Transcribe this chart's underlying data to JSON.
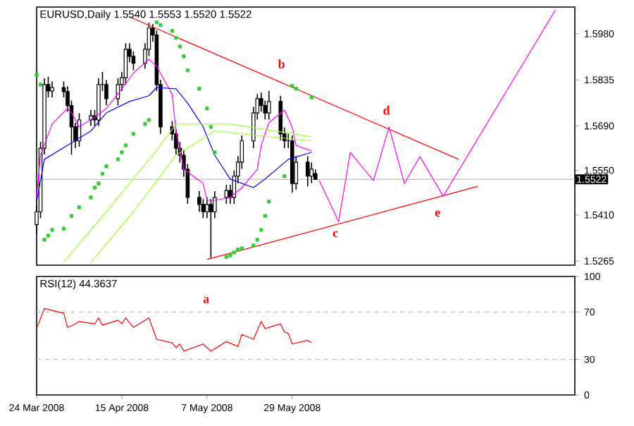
{
  "chart_data": [
    {
      "type": "candlestick",
      "title": "EURUSD,Daily  1.5540 1.5553 1.5520 1.5522",
      "x": [
        "2008-03-24",
        "2008-03-25",
        "2008-03-26",
        "2008-03-27",
        "2008-03-28",
        "2008-03-31",
        "2008-04-01",
        "2008-04-02",
        "2008-04-03",
        "2008-04-04",
        "2008-04-07",
        "2008-04-08",
        "2008-04-09",
        "2008-04-10",
        "2008-04-11",
        "2008-04-14",
        "2008-04-15",
        "2008-04-16",
        "2008-04-17",
        "2008-04-18",
        "2008-04-21",
        "2008-04-22",
        "2008-04-23",
        "2008-04-24",
        "2008-04-25",
        "2008-04-28",
        "2008-04-29",
        "2008-04-30",
        "2008-05-01",
        "2008-05-02",
        "2008-05-05",
        "2008-05-06",
        "2008-05-07",
        "2008-05-08",
        "2008-05-09",
        "2008-05-12",
        "2008-05-13",
        "2008-05-14",
        "2008-05-15",
        "2008-05-16",
        "2008-05-19",
        "2008-05-20",
        "2008-05-21",
        "2008-05-22",
        "2008-05-23",
        "2008-05-26",
        "2008-05-27",
        "2008-05-28",
        "2008-05-29",
        "2008-05-30",
        "2008-06-02",
        "2008-06-03",
        "2008-06-04"
      ],
      "ohlc": [
        [
          1.538,
          1.544,
          1.535,
          1.542
        ],
        [
          1.542,
          1.564,
          1.54,
          1.562
        ],
        [
          1.562,
          1.584,
          1.56,
          1.582
        ],
        [
          1.582,
          1.5845,
          1.578,
          1.58
        ],
        [
          1.58,
          1.583,
          1.578,
          1.5811
        ],
        [
          1.5811,
          1.583,
          1.578,
          1.5798
        ],
        [
          1.5798,
          1.5815,
          1.5735,
          1.5754
        ],
        [
          1.5754,
          1.577,
          1.56,
          1.5687
        ],
        [
          1.5687,
          1.57,
          1.562,
          1.5643
        ],
        [
          1.5643,
          1.573,
          1.5625,
          1.5709
        ],
        [
          1.5709,
          1.574,
          1.569,
          1.5722
        ],
        [
          1.5722,
          1.574,
          1.569,
          1.5709
        ],
        [
          1.5709,
          1.584,
          1.569,
          1.582
        ],
        [
          1.582,
          1.586,
          1.58,
          1.582
        ],
        [
          1.582,
          1.5835,
          1.5755,
          1.5776
        ],
        [
          1.5776,
          1.584,
          1.5755,
          1.582
        ],
        [
          1.582,
          1.586,
          1.58,
          1.5842
        ],
        [
          1.5842,
          1.595,
          1.582,
          1.5931
        ],
        [
          1.5931,
          1.595,
          1.589,
          1.5909
        ],
        [
          1.5909,
          1.5925,
          1.5865,
          1.5887
        ],
        [
          1.5887,
          1.595,
          1.587,
          1.5931
        ],
        [
          1.5931,
          1.6015,
          1.591,
          1.5998
        ],
        [
          1.5998,
          1.601,
          1.5955,
          1.5976
        ],
        [
          1.5976,
          1.599,
          1.58,
          1.582
        ],
        [
          1.582,
          1.5835,
          1.5665,
          1.5687
        ],
        [
          1.5687,
          1.5705,
          1.5645,
          1.5665
        ],
        [
          1.5665,
          1.568,
          1.56,
          1.562
        ],
        [
          1.562,
          1.564,
          1.5575,
          1.5598
        ],
        [
          1.5598,
          1.5615,
          1.553,
          1.5554
        ],
        [
          1.5554,
          1.557,
          1.5445,
          1.5465
        ],
        [
          1.5465,
          1.5485,
          1.542,
          1.5443
        ],
        [
          1.5443,
          1.546,
          1.54,
          1.542
        ],
        [
          1.542,
          1.5465,
          1.54,
          1.5443
        ],
        [
          1.5443,
          1.546,
          1.5275,
          1.542
        ],
        [
          1.542,
          1.5485,
          1.54,
          1.5465
        ],
        [
          1.5465,
          1.5505,
          1.5445,
          1.5487
        ],
        [
          1.5487,
          1.5505,
          1.5445,
          1.5465
        ],
        [
          1.5465,
          1.555,
          1.5445,
          1.5532
        ],
        [
          1.5532,
          1.5595,
          1.551,
          1.5576
        ],
        [
          1.5576,
          1.566,
          1.5555,
          1.5643
        ],
        [
          1.5643,
          1.575,
          1.562,
          1.5731
        ],
        [
          1.5731,
          1.579,
          1.571,
          1.5776
        ],
        [
          1.5776,
          1.5795,
          1.5735,
          1.5754
        ],
        [
          1.5754,
          1.577,
          1.571,
          1.5731
        ],
        [
          1.5731,
          1.58,
          1.571,
          1.5767
        ],
        [
          1.5767,
          1.5785,
          1.5645,
          1.5665
        ],
        [
          1.5665,
          1.5685,
          1.562,
          1.5643
        ],
        [
          1.5643,
          1.5665,
          1.562,
          1.5643
        ],
        [
          1.5643,
          1.566,
          1.548,
          1.5509
        ],
        [
          1.5509,
          1.5595,
          1.549,
          1.5576
        ],
        [
          1.5576,
          1.5595,
          1.55,
          1.5532
        ],
        [
          1.5532,
          1.5575,
          1.551,
          1.5554
        ],
        [
          1.554,
          1.5553,
          1.552,
          1.5522
        ]
      ],
      "series": [
        {
          "type": "line",
          "color": "#ff00ff",
          "x": [
            "2008-03-24",
            "2008-03-25",
            "2008-03-28",
            "2008-04-01",
            "2008-04-02",
            "2008-04-04",
            "2008-04-08",
            "2008-04-11",
            "2008-04-15",
            "2008-04-18",
            "2008-04-22",
            "2008-04-24",
            "2008-04-28",
            "2008-04-29",
            "2008-05-01",
            "2008-05-06",
            "2008-05-07",
            "2008-05-09",
            "2008-05-13",
            "2008-05-16",
            "2008-05-20",
            "2008-05-21",
            "2008-05-23",
            "2008-05-27",
            "2008-05-29",
            "2008-05-30",
            "2008-06-03"
          ],
          "values": [
            1.5465,
            1.5598,
            1.5696,
            1.5745,
            1.5731,
            1.5687,
            1.5718,
            1.5745,
            1.5807,
            1.5856,
            1.59,
            1.5878,
            1.5789,
            1.5674,
            1.5554,
            1.5509,
            1.5456,
            1.5456,
            1.5465,
            1.5496,
            1.5554,
            1.5629,
            1.57,
            1.574,
            1.5687,
            1.5629,
            1.5611
          ]
        },
        {
          "type": "line",
          "color": "#0000ff",
          "x": [
            "2008-03-24",
            "2008-03-26",
            "2008-04-01",
            "2008-04-07",
            "2008-04-11",
            "2008-04-17",
            "2008-04-22",
            "2008-04-24",
            "2008-04-29",
            "2008-05-02",
            "2008-05-06",
            "2008-05-09",
            "2008-05-13",
            "2008-05-19",
            "2008-05-22",
            "2008-05-28",
            "2008-06-03"
          ],
          "values": [
            1.5452,
            1.5585,
            1.5629,
            1.5674,
            1.5731,
            1.5767,
            1.5785,
            1.5811,
            1.5807,
            1.5762,
            1.5687,
            1.5598,
            1.5523,
            1.5496,
            1.5523,
            1.5585,
            1.5607
          ]
        },
        {
          "type": "line",
          "color": "#99ff33",
          "x": [
            "2008-03-31",
            "2008-04-11",
            "2008-04-23",
            "2008-04-29",
            "2008-05-13",
            "2008-06-03"
          ],
          "values": [
            1.5261,
            1.542,
            1.5598,
            1.5696,
            1.5696,
            1.5656
          ]
        },
        {
          "type": "line",
          "color": "#99ff33",
          "x": [
            "2008-04-07",
            "2008-04-18",
            "2008-04-29",
            "2008-05-09",
            "2008-06-03"
          ],
          "values": [
            1.5261,
            1.542,
            1.5598,
            1.5674,
            1.5643
          ]
        },
        {
          "type": "scatter",
          "marker": "square",
          "color": "#33cc33",
          "x": [
            "2008-03-24",
            "2008-03-25",
            "2008-03-26",
            "2008-03-27",
            "2008-03-28",
            "2008-03-31",
            "2008-04-02",
            "2008-04-04",
            "2008-04-07",
            "2008-04-08",
            "2008-04-09",
            "2008-04-10",
            "2008-04-11",
            "2008-04-14",
            "2008-04-15",
            "2008-04-16",
            "2008-04-18",
            "2008-04-21",
            "2008-04-22",
            "2008-04-24",
            "2008-04-25",
            "2008-04-28",
            "2008-04-29",
            "2008-04-30",
            "2008-05-01",
            "2008-05-02",
            "2008-05-05",
            "2008-05-07",
            "2008-05-08",
            "2008-05-09",
            "2008-05-12",
            "2008-05-13",
            "2008-05-14",
            "2008-05-15",
            "2008-05-16",
            "2008-05-19",
            "2008-05-20",
            "2008-05-21",
            "2008-05-22",
            "2008-05-23",
            "2008-05-27",
            "2008-05-29",
            "2008-05-30",
            "2008-06-03"
          ],
          "values": [
            1.5851,
            1.582,
            1.5332,
            1.5345,
            1.5363,
            1.5367,
            1.5407,
            1.5434,
            1.5465,
            1.5496,
            1.5509,
            1.554,
            1.5563,
            1.5585,
            1.5607,
            1.5629,
            1.5665,
            1.5696,
            1.5709,
            1.6016,
            1.6007,
            1.5989,
            1.5967,
            1.594,
            1.5909,
            1.5865,
            1.5807,
            1.5745,
            1.5687,
            1.5607,
            1.5278,
            1.5283,
            1.5292,
            1.5301,
            1.5305,
            1.5314,
            1.5332,
            1.5363,
            1.5407,
            1.5452,
            1.5532,
            1.5816,
            1.5807,
            1.578
          ]
        },
        {
          "type": "line",
          "color": "#ff0000",
          "x": [
            "2008-04-17",
            "2008-07-11"
          ],
          "values": [
            1.6033,
            1.5585
          ]
        },
        {
          "type": "line",
          "color": "#ff0000",
          "x": [
            "2008-05-07",
            "2008-07-16"
          ],
          "values": [
            1.527,
            1.55
          ]
        },
        {
          "type": "line",
          "color": "#ff00ff",
          "x": [
            "2008-06-05",
            "2008-06-10",
            "2008-06-13",
            "2008-06-19",
            "2008-06-23",
            "2008-06-27",
            "2008-07-01",
            "2008-07-07",
            "2008-08-05"
          ],
          "values": [
            1.5518,
            1.5389,
            1.5607,
            1.5518,
            1.5687,
            1.5509,
            1.5594,
            1.5469,
            1.6055
          ]
        }
      ],
      "xlim": [
        "2008-03-24",
        "2008-08-10"
      ],
      "ylim": [
        1.5252,
        1.6064
      ],
      "yticks": [
        1.5265,
        {
          "value": 1.541,
          "label": "1.5410"
        },
        {
          "value": 1.555,
          "label": "1.5550"
        },
        {
          "value": 1.569,
          "label": "1.5690"
        },
        1.5835,
        {
          "value": 1.598,
          "label": "1.5980"
        }
      ],
      "tick_labels": "y",
      "ref_lines": [
        {
          "axis": "y",
          "value": 1.5522,
          "label": "1.5522",
          "color": "#c0c0c0"
        }
      ],
      "annotations": [
        "b",
        "c",
        "d",
        "e"
      ]
    },
    {
      "type": "line",
      "title": "RSI(12) 44.3637",
      "series": [
        {
          "color": "#ff0000",
          "x": [
            "2008-03-24",
            "2008-03-26",
            "2008-03-31",
            "2008-04-01",
            "2008-04-03",
            "2008-04-04",
            "2008-04-08",
            "2008-04-09",
            "2008-04-10",
            "2008-04-14",
            "2008-04-15",
            "2008-04-16",
            "2008-04-18",
            "2008-04-22",
            "2008-04-24",
            "2008-04-28",
            "2008-04-29",
            "2008-04-30",
            "2008-05-01",
            "2008-05-06",
            "2008-05-08",
            "2008-05-12",
            "2008-05-15",
            "2008-05-16",
            "2008-05-19",
            "2008-05-21",
            "2008-05-22",
            "2008-05-26",
            "2008-05-27",
            "2008-05-28",
            "2008-05-29",
            "2008-06-02",
            "2008-06-03"
          ],
          "values": [
            56,
            73,
            69,
            57,
            60,
            62,
            60,
            65,
            59,
            63,
            60,
            65,
            57,
            65,
            47,
            44,
            40,
            43,
            37,
            43,
            37,
            45,
            41,
            51,
            47,
            62,
            56,
            60,
            53,
            52,
            43,
            46,
            44
          ]
        }
      ],
      "xlim": [
        "2008-03-24",
        "2008-08-10"
      ],
      "ylim": [
        0,
        100
      ],
      "yticks": [
        0,
        30,
        70,
        100
      ],
      "xticks": [
        {
          "value": "2008-03-24",
          "label": "24 Mar 2008"
        },
        {
          "value": "2008-04-15",
          "label": "15 Apr 2008"
        },
        {
          "value": "2008-05-07",
          "label": "7 May 2008"
        },
        {
          "value": "2008-05-29",
          "label": "29 May 2008"
        }
      ],
      "ref_lines": [
        {
          "axis": "y",
          "value": 70,
          "color": "#c0c0c0",
          "line_style": "dashed"
        },
        {
          "axis": "y",
          "value": 30,
          "color": "#c0c0c0",
          "line_style": "dashed"
        }
      ],
      "annotations": [
        "a"
      ]
    }
  ]
}
